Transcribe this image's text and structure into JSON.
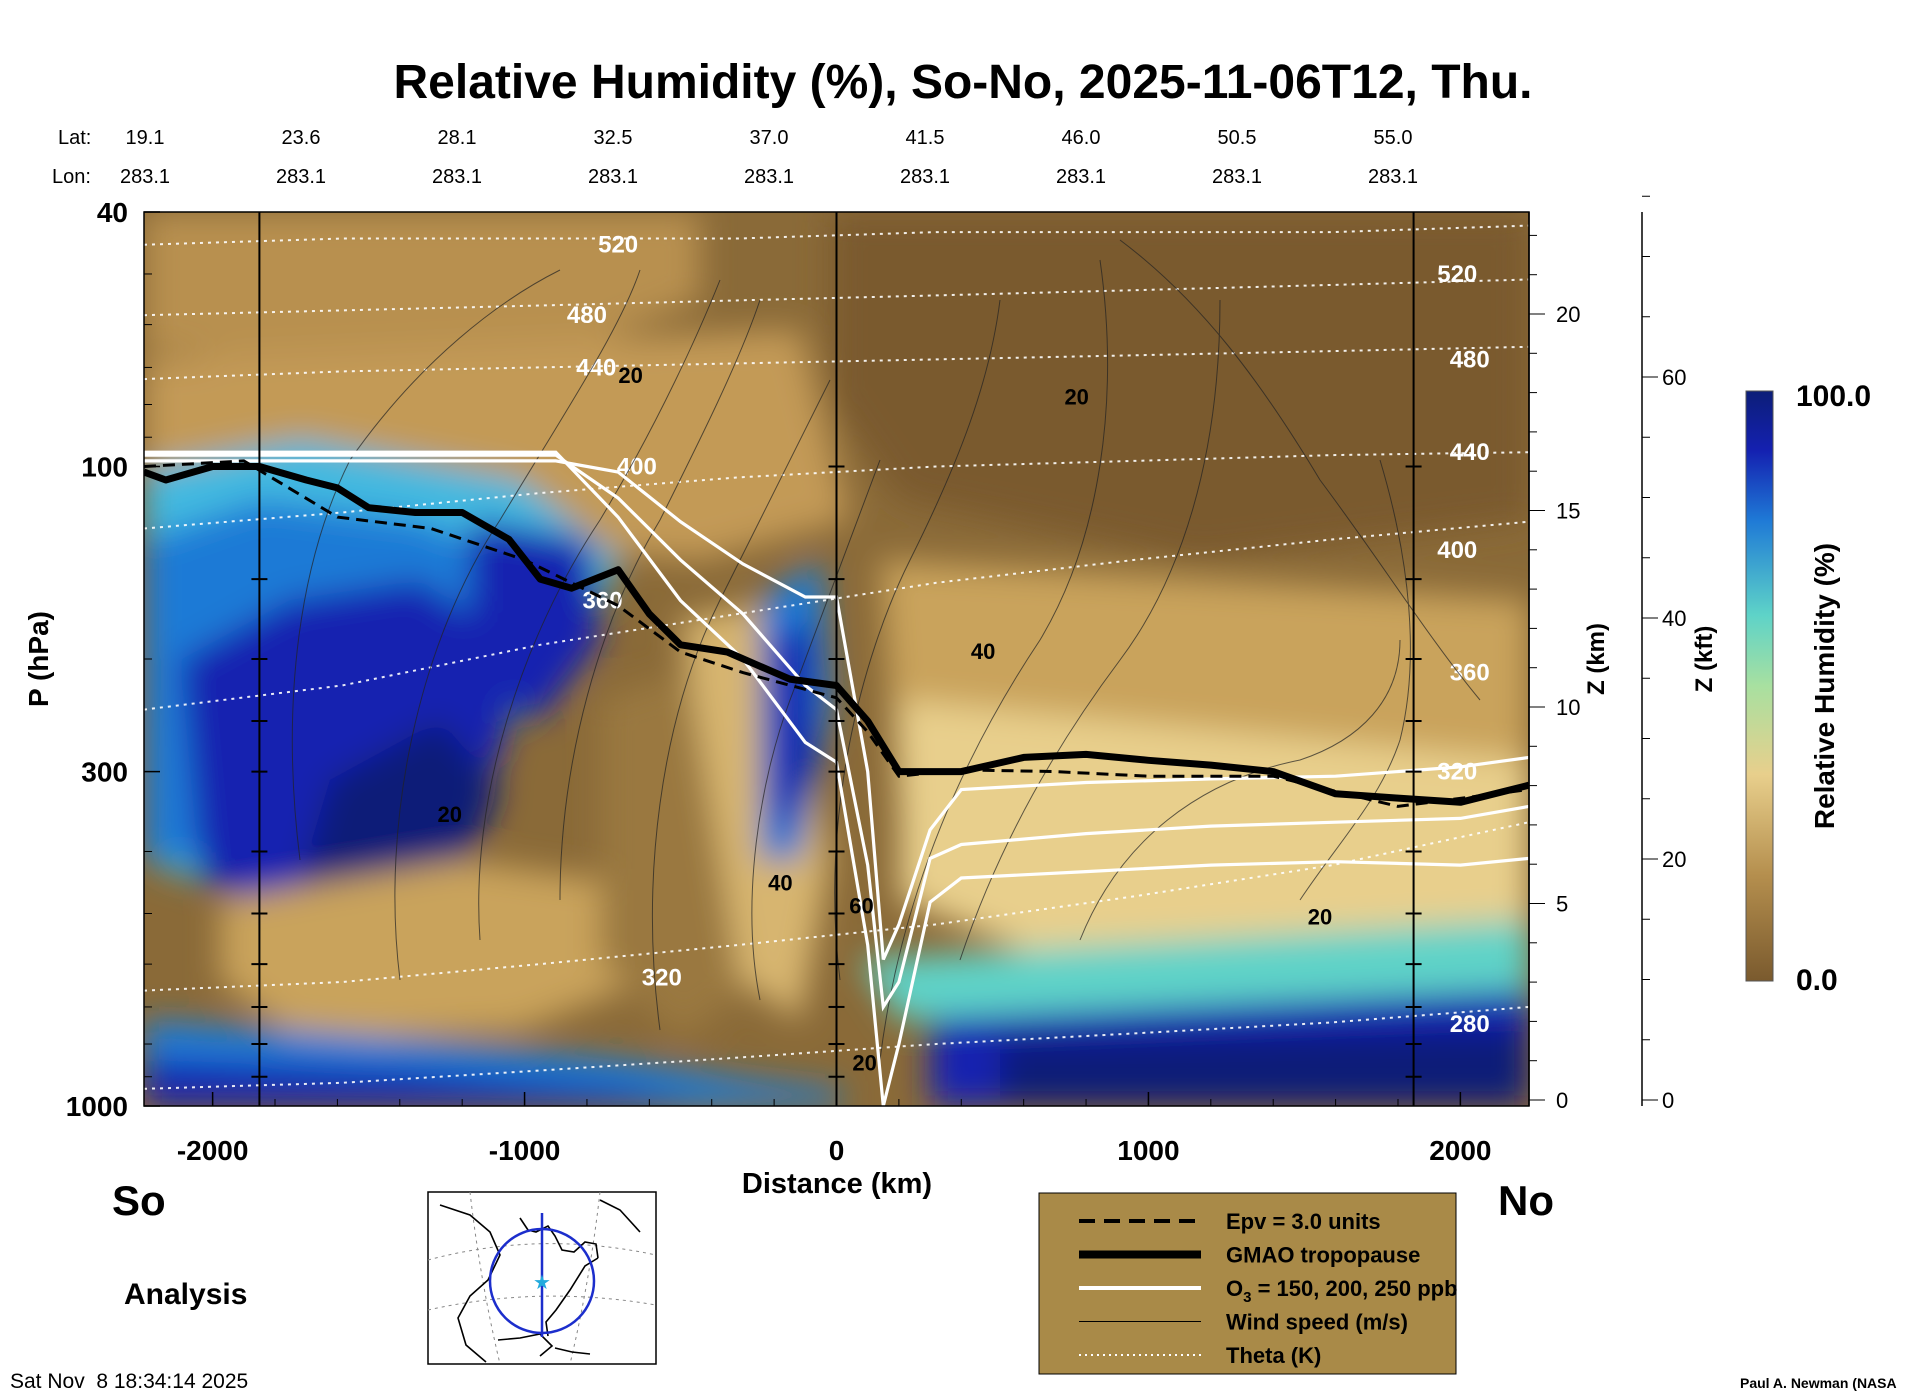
{
  "chart_data": {
    "type": "heatmap",
    "title": "Relative Humidity (%), So-No, 2025-11-06T12, Thu.",
    "xlabel": "Distance (km)",
    "ylabel": "P (hPa)",
    "xlim": [
      -2220,
      2220
    ],
    "ylim": [
      1000,
      40
    ],
    "y_scale": "log",
    "x_ticks": [
      -2000,
      -1000,
      0,
      1000,
      2000
    ],
    "x_tick_labels": [
      "-2000",
      "-1000",
      "0",
      "1000",
      "2000"
    ],
    "y_ticks": [
      40,
      100,
      300,
      1000
    ],
    "y_tick_labels": [
      "40",
      "100",
      "300",
      "1000"
    ],
    "lat_label": "Lat:",
    "lon_label": "Lon:",
    "lat_values": [
      "19.1",
      "23.6",
      "28.1",
      "32.5",
      "37.0",
      "41.5",
      "46.0",
      "50.5",
      "55.0"
    ],
    "lon_values": [
      "283.1",
      "283.1",
      "283.1",
      "283.1",
      "283.1",
      "283.1",
      "283.1",
      "283.1",
      "283.1"
    ],
    "lat_lon_positions_km": [
      -2220,
      -1720,
      -1220,
      -720,
      -220,
      280,
      780,
      1280,
      1780
    ],
    "z_km_label": "Z (km)",
    "z_km_ticks": [
      0,
      5,
      10,
      15,
      20
    ],
    "z_kft_label": "Z (kft)",
    "z_kft_ticks": [
      0,
      20,
      40,
      60
    ],
    "colorbar_label": "Relative Humidity (%)",
    "colorbar_max_label": "100.0",
    "colorbar_min_label": "0.0",
    "colorbar_range": [
      0,
      100
    ],
    "colors": {
      "dry": "#7a5a2e",
      "mid_dry": "#c9a35c",
      "mid": "#e8cf8c",
      "mid_wet": "#5ed3c8",
      "wet": "#1f7ad6",
      "very_wet": "#1420b0",
      "saturated": "#0c1e78",
      "legend_bg": "#a98a48"
    },
    "theta_levels": [
      {
        "value": 280,
        "p": [
          940,
          920,
          880,
          840,
          800,
          770,
          740,
          700
        ]
      },
      {
        "value": 320,
        "p": [
          660,
          640,
          600,
          560,
          520,
          470,
          420,
          360
        ]
      },
      {
        "value": 360,
        "p": [
          240,
          220,
          190,
          170,
          152,
          140,
          130,
          122
        ]
      },
      {
        "value": 400,
        "p": [
          125,
          118,
          110,
          104,
          100,
          98,
          96,
          95
        ]
      },
      {
        "value": 440,
        "p": [
          73,
          71,
          70,
          69,
          68,
          67,
          66,
          65
        ]
      },
      {
        "value": 480,
        "p": [
          58,
          57,
          56,
          55,
          54,
          53,
          52,
          51
        ]
      },
      {
        "value": 520,
        "p": [
          45,
          44,
          44,
          44,
          43,
          43,
          43,
          42
        ]
      }
    ],
    "theta_x_km": [
      -2220,
      -1585,
      -950,
      -315,
      320,
      955,
      1590,
      2220
    ],
    "theta_labels": [
      {
        "text": "520",
        "x": -700,
        "p": 45
      },
      {
        "text": "480",
        "x": -800,
        "p": 58
      },
      {
        "text": "440",
        "x": -770,
        "p": 70
      },
      {
        "text": "400",
        "x": -640,
        "p": 100
      },
      {
        "text": "360",
        "x": -750,
        "p": 162
      },
      {
        "text": "320",
        "x": -560,
        "p": 630
      },
      {
        "text": "520",
        "x": 1990,
        "p": 50
      },
      {
        "text": "480",
        "x": 2030,
        "p": 68
      },
      {
        "text": "440",
        "x": 2030,
        "p": 95
      },
      {
        "text": "400",
        "x": 1990,
        "p": 135
      },
      {
        "text": "360",
        "x": 2030,
        "p": 210
      },
      {
        "text": "320",
        "x": 1990,
        "p": 300
      },
      {
        "text": "280",
        "x": 2030,
        "p": 745
      }
    ],
    "tropopause_x_km": [
      -2220,
      -2150,
      -2000,
      -1850,
      -1700,
      -1600,
      -1500,
      -1350,
      -1200,
      -1050,
      -950,
      -850,
      -700,
      -600,
      -500,
      -350,
      -150,
      0,
      100,
      200,
      400,
      600,
      800,
      1000,
      1200,
      1400,
      1600,
      1800,
      2000,
      2220
    ],
    "tropopause_p": [
      102,
      105,
      100,
      100,
      105,
      108,
      116,
      118,
      118,
      130,
      150,
      155,
      145,
      170,
      190,
      195,
      215,
      220,
      250,
      300,
      300,
      285,
      282,
      288,
      293,
      300,
      325,
      330,
      335,
      315
    ],
    "epv_x_km": [
      -2220,
      -1900,
      -1600,
      -1300,
      -1000,
      -700,
      -500,
      -300,
      0,
      100,
      200,
      400,
      700,
      1000,
      1400,
      1800,
      2220
    ],
    "epv_p": [
      100,
      98,
      120,
      125,
      140,
      165,
      195,
      210,
      230,
      260,
      305,
      298,
      300,
      305,
      305,
      340,
      320
    ],
    "ozone_x_km": [
      -2220,
      -1600,
      -1100,
      -900,
      -700,
      -500,
      -300,
      -100,
      0,
      100,
      150,
      200,
      300,
      400,
      800,
      1200,
      1600,
      2000,
      2220
    ],
    "ozone_p": [
      [
        98,
        98,
        98,
        98,
        102,
        122,
        142,
        160,
        160,
        300,
        590,
        520,
        370,
        320,
        312,
        308,
        305,
        295,
        285
      ],
      [
        96,
        96,
        96,
        96,
        112,
        140,
        170,
        220,
        240,
        420,
        700,
        640,
        410,
        390,
        375,
        365,
        360,
        355,
        340
      ],
      [
        95,
        95,
        95,
        95,
        120,
        162,
        200,
        270,
        290,
        560,
        1000,
        800,
        480,
        440,
        430,
        420,
        415,
        420,
        410
      ]
    ],
    "wind_labels": [
      {
        "text": "20",
        "x": -660,
        "p": 74
      },
      {
        "text": "20",
        "x": 770,
        "p": 80
      },
      {
        "text": "40",
        "x": 470,
        "p": 200
      },
      {
        "text": "20",
        "x": -1240,
        "p": 360
      },
      {
        "text": "40",
        "x": -180,
        "p": 460
      },
      {
        "text": "60",
        "x": 80,
        "p": 500
      },
      {
        "text": "20",
        "x": 1550,
        "p": 520
      },
      {
        "text": "20",
        "x": 90,
        "p": 880
      }
    ],
    "legend": [
      {
        "style": "dashed-thick",
        "label": "Epv = 3.0 units"
      },
      {
        "style": "solid-black-thick",
        "label": "GMAO tropopause"
      },
      {
        "style": "solid-white",
        "label_pre": "O",
        "label_sub": "3",
        "label_post": " = 150, 200, 250 ppb"
      },
      {
        "style": "solid-black-thin",
        "label": "Wind speed (m/s)"
      },
      {
        "style": "dotted-white",
        "label": "Theta (K)"
      }
    ]
  },
  "left_end_label": "So",
  "right_end_label": "No",
  "analysis_label": "Analysis",
  "timestamp": "Sat Nov  8 18:34:14 2025",
  "credit": "Paul A. Newman (NASA"
}
